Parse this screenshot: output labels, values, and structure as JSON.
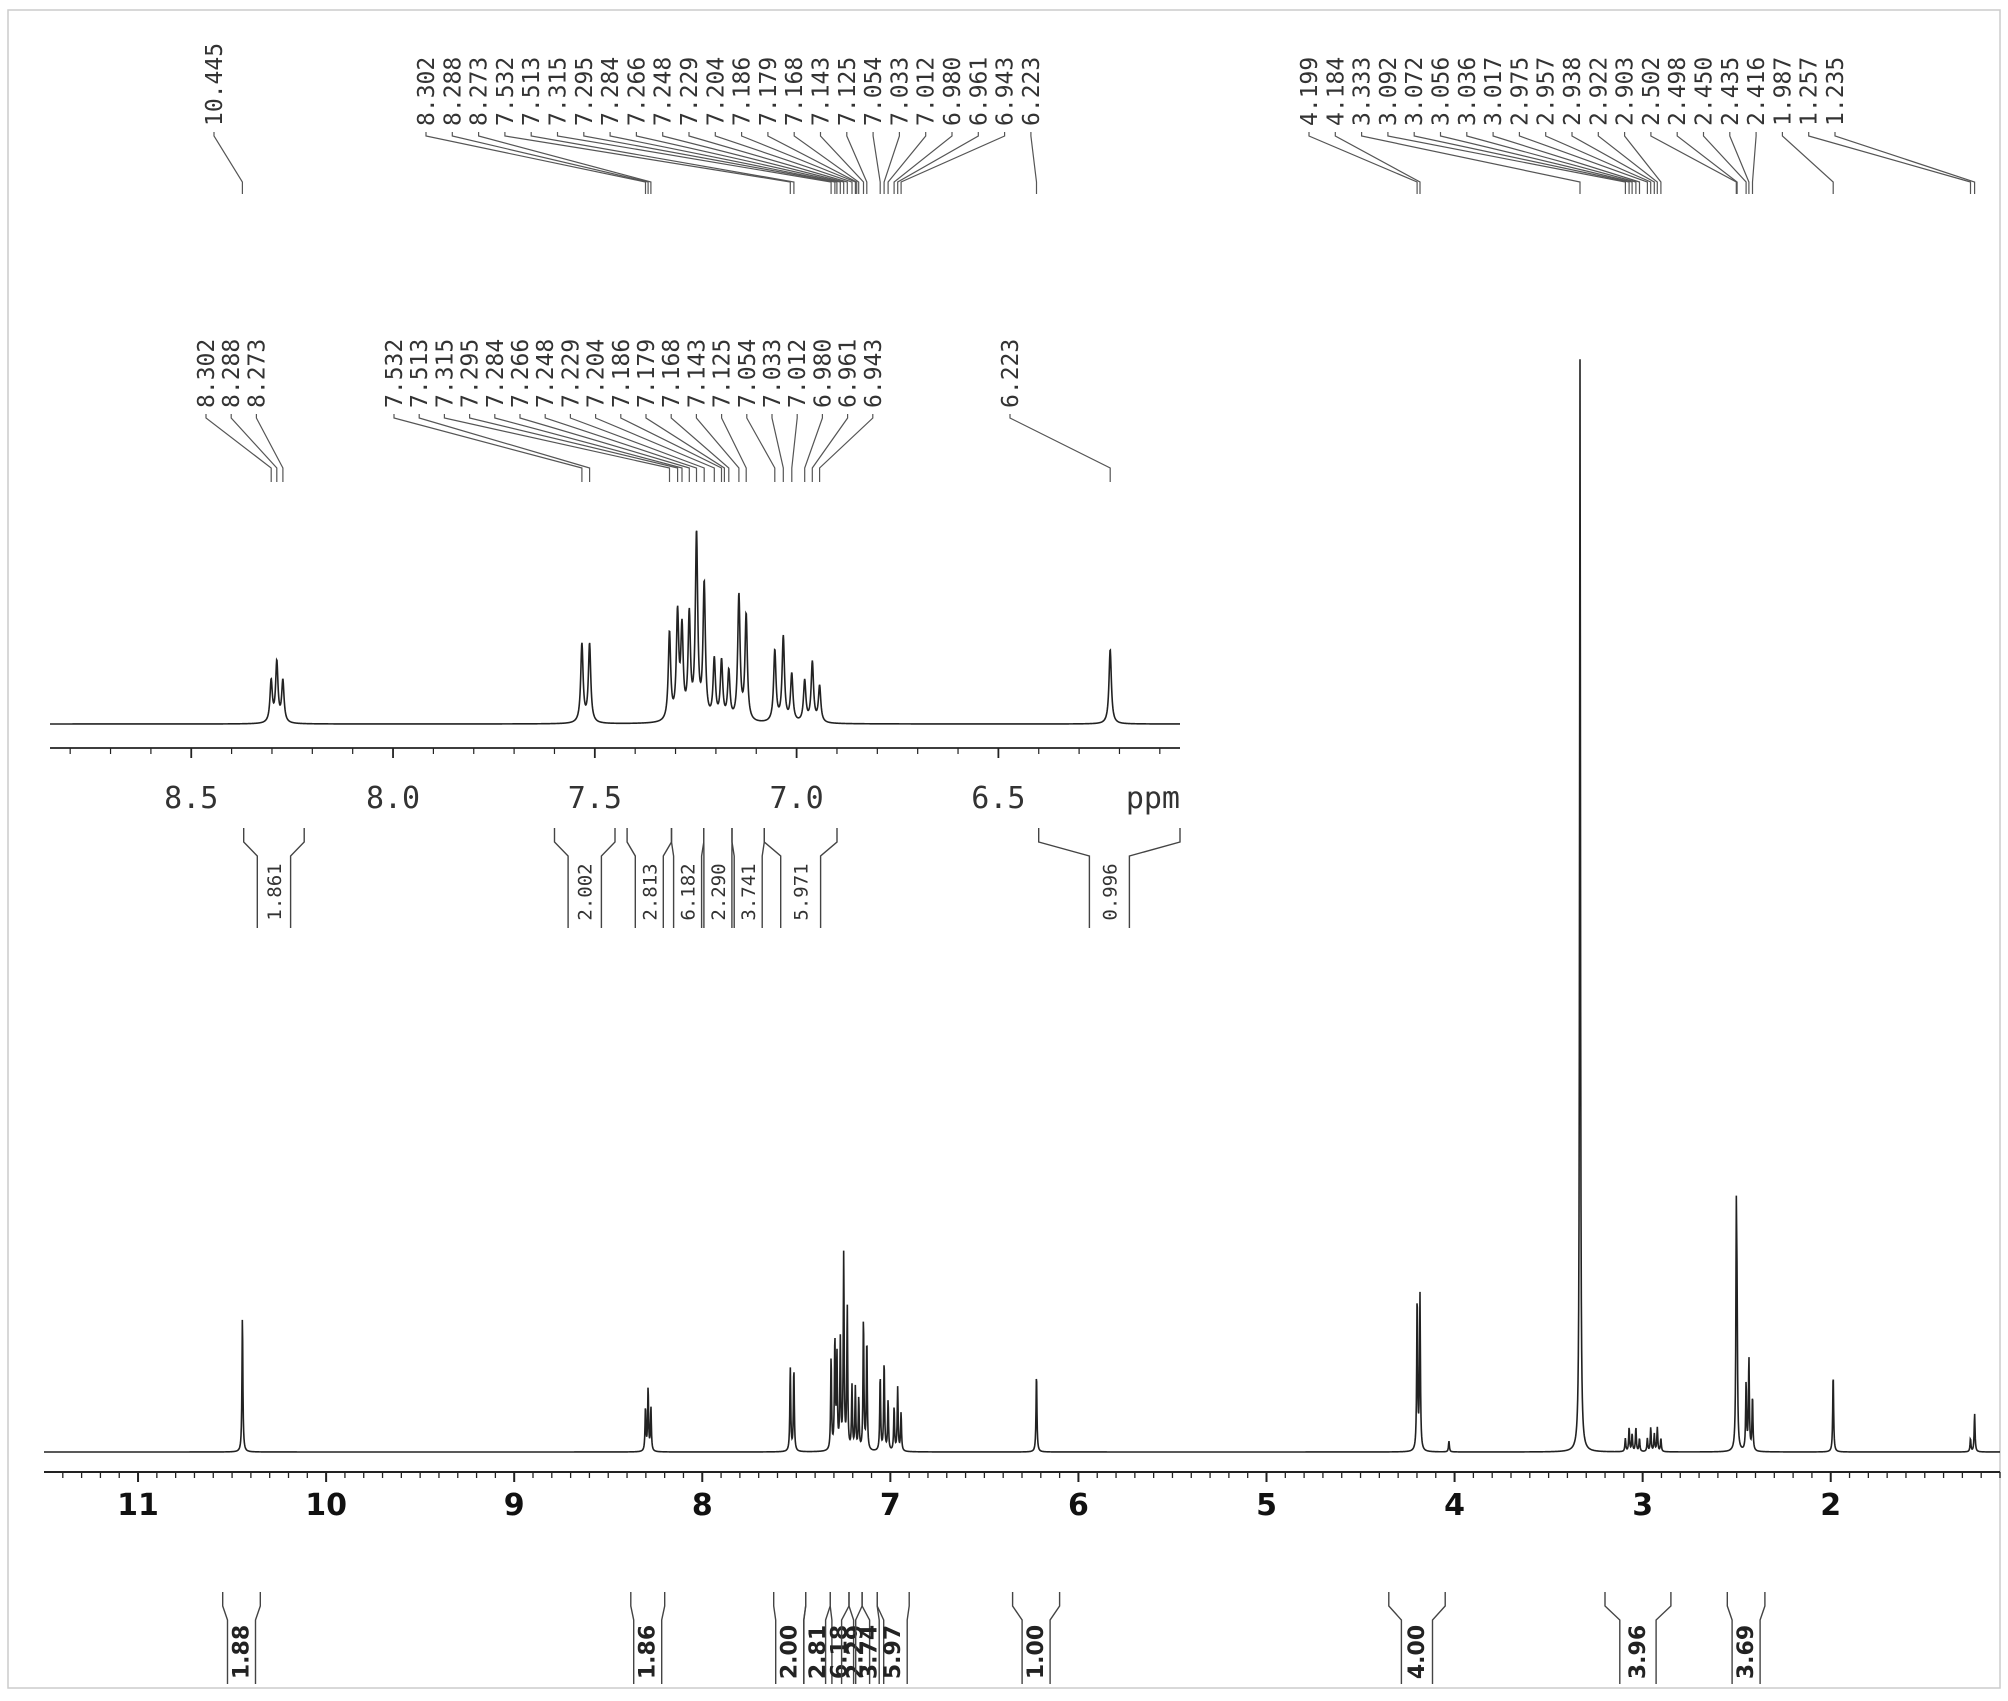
{
  "chart_data": {
    "type": "line",
    "title": "",
    "xlabel": "",
    "ylabel": "",
    "main": {
      "xlim": [
        11.5,
        1.1
      ],
      "x_ticks": [
        11,
        10,
        9,
        8,
        7,
        6,
        5,
        4,
        3,
        2
      ],
      "peak_labels": [
        "10.445",
        "8.302",
        "8.288",
        "8.273",
        "7.532",
        "7.513",
        "7.315",
        "7.295",
        "7.284",
        "7.266",
        "7.248",
        "7.229",
        "7.204",
        "7.186",
        "7.179",
        "7.168",
        "7.143",
        "7.125",
        "7.054",
        "7.033",
        "7.012",
        "6.980",
        "6.961",
        "6.943",
        "6.223",
        "4.199",
        "4.184",
        "3.333",
        "3.092",
        "3.072",
        "3.056",
        "3.036",
        "3.017",
        "2.975",
        "2.957",
        "2.938",
        "2.922",
        "2.903",
        "2.502",
        "2.498",
        "2.450",
        "2.435",
        "2.416",
        "1.987",
        "1.257",
        "1.235"
      ],
      "integrals": [
        {
          "label": "1.88",
          "from": 10.55,
          "to": 10.35
        },
        {
          "label": "1.86",
          "from": 8.38,
          "to": 8.2
        },
        {
          "label": "2.00",
          "from": 7.62,
          "to": 7.45
        },
        {
          "label": "2.81",
          "from": 7.45,
          "to": 7.32
        },
        {
          "label": "6.18",
          "from": 7.32,
          "to": 7.22
        },
        {
          "label": "2.29",
          "from": 7.22,
          "to": 7.15
        },
        {
          "label": "3.74",
          "from": 7.15,
          "to": 7.07
        },
        {
          "label": "5.97",
          "from": 7.07,
          "to": 6.9
        },
        {
          "label": "1.00",
          "from": 6.35,
          "to": 6.1
        },
        {
          "label": "4.00",
          "from": 4.35,
          "to": 4.05
        },
        {
          "label": "3.96",
          "from": 3.2,
          "to": 2.85
        },
        {
          "label": "3.69",
          "from": 2.55,
          "to": 2.35
        }
      ],
      "peaks": [
        {
          "ppm": 10.445,
          "h": 0.124
        },
        {
          "ppm": 8.302,
          "h": 0.04
        },
        {
          "ppm": 8.288,
          "h": 0.058
        },
        {
          "ppm": 8.273,
          "h": 0.04
        },
        {
          "ppm": 7.532,
          "h": 0.076
        },
        {
          "ppm": 7.513,
          "h": 0.076
        },
        {
          "ppm": 7.315,
          "h": 0.085
        },
        {
          "ppm": 7.295,
          "h": 0.101
        },
        {
          "ppm": 7.284,
          "h": 0.085
        },
        {
          "ppm": 7.266,
          "h": 0.099
        },
        {
          "ppm": 7.248,
          "h": 0.178
        },
        {
          "ppm": 7.229,
          "h": 0.13
        },
        {
          "ppm": 7.204,
          "h": 0.058
        },
        {
          "ppm": 7.186,
          "h": 0.057
        },
        {
          "ppm": 7.168,
          "h": 0.047
        },
        {
          "ppm": 7.143,
          "h": 0.121
        },
        {
          "ppm": 7.125,
          "h": 0.102
        },
        {
          "ppm": 7.054,
          "h": 0.069
        },
        {
          "ppm": 7.033,
          "h": 0.082
        },
        {
          "ppm": 7.012,
          "h": 0.046
        },
        {
          "ppm": 6.98,
          "h": 0.04
        },
        {
          "ppm": 6.961,
          "h": 0.058
        },
        {
          "ppm": 6.943,
          "h": 0.035
        },
        {
          "ppm": 6.223,
          "h": 0.072
        },
        {
          "ppm": 4.199,
          "h": 0.142
        },
        {
          "ppm": 4.184,
          "h": 0.142
        },
        {
          "ppm": 4.03,
          "h": 0.01
        },
        {
          "ppm": 3.333,
          "h": 1.0
        },
        {
          "ppm": 3.092,
          "h": 0.012
        },
        {
          "ppm": 3.072,
          "h": 0.022
        },
        {
          "ppm": 3.056,
          "h": 0.016
        },
        {
          "ppm": 3.036,
          "h": 0.022
        },
        {
          "ppm": 3.017,
          "h": 0.012
        },
        {
          "ppm": 2.975,
          "h": 0.012
        },
        {
          "ppm": 2.957,
          "h": 0.022
        },
        {
          "ppm": 2.938,
          "h": 0.016
        },
        {
          "ppm": 2.922,
          "h": 0.022
        },
        {
          "ppm": 2.903,
          "h": 0.012
        },
        {
          "ppm": 2.502,
          "h": 0.2
        },
        {
          "ppm": 2.498,
          "h": 0.1
        },
        {
          "ppm": 2.45,
          "h": 0.062
        },
        {
          "ppm": 2.435,
          "h": 0.085
        },
        {
          "ppm": 2.416,
          "h": 0.05
        },
        {
          "ppm": 1.987,
          "h": 0.072
        },
        {
          "ppm": 1.257,
          "h": 0.012
        },
        {
          "ppm": 1.235,
          "h": 0.035
        }
      ]
    },
    "inset": {
      "xlim": [
        8.85,
        6.05
      ],
      "x_ticks": [
        "8.5",
        "8.0",
        "7.5",
        "7.0",
        "6.5"
      ],
      "x_unit_label": "ppm",
      "peak_labels": [
        "8.302",
        "8.288",
        "8.273",
        "7.532",
        "7.513",
        "7.315",
        "7.295",
        "7.284",
        "7.266",
        "7.248",
        "7.229",
        "7.204",
        "7.186",
        "7.179",
        "7.168",
        "7.143",
        "7.125",
        "7.054",
        "7.033",
        "7.012",
        "6.980",
        "6.961",
        "6.943",
        "6.223"
      ],
      "integrals": [
        {
          "label": "1.861",
          "from": 8.37,
          "to": 8.22
        },
        {
          "label": "2.002",
          "from": 7.6,
          "to": 7.45
        },
        {
          "label": "2.813",
          "from": 7.42,
          "to": 7.31
        },
        {
          "label": "6.182",
          "from": 7.31,
          "to": 7.23
        },
        {
          "label": "2.290",
          "from": 7.23,
          "to": 7.16
        },
        {
          "label": "3.741",
          "from": 7.16,
          "to": 7.08
        },
        {
          "label": "5.971",
          "from": 7.08,
          "to": 6.9
        },
        {
          "label": "0.996",
          "from": 6.4,
          "to": 6.05
        }
      ]
    }
  }
}
